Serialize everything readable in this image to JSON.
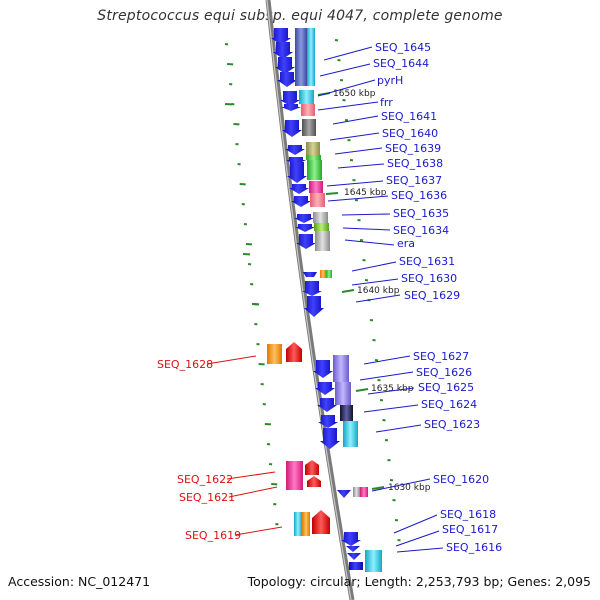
{
  "title": "Streptococcus equi subsp. equi 4047, complete genome",
  "footer": {
    "accession": "Accession: NC_012471",
    "summary": "Topology: circular; Length: 2,253,793 bp; Genes: 2,095"
  },
  "colors": {
    "forward_gene": "#1414e0",
    "label_forward": "#1a1acc",
    "label_reverse": "#dd1111",
    "backbone": "#7a7a7a",
    "tick": "#2a8a2a"
  },
  "scale_marks": [
    "1650 kbp",
    "1645 kbp",
    "1640 kbp",
    "1635 kbp",
    "1630 kbp"
  ],
  "gene_labels_right": [
    "SEQ_1645",
    "SEQ_1644",
    "pyrH",
    "frr",
    "SEQ_1641",
    "SEQ_1640",
    "SEQ_1639",
    "SEQ_1638",
    "SEQ_1637",
    "SEQ_1636",
    "SEQ_1635",
    "SEQ_1634",
    "era",
    "SEQ_1631",
    "SEQ_1630",
    "SEQ_1629",
    "SEQ_1627",
    "SEQ_1626",
    "SEQ_1625",
    "SEQ_1624",
    "SEQ_1623",
    "SEQ_1620",
    "SEQ_1618",
    "SEQ_1617",
    "SEQ_1616"
  ],
  "gene_labels_left": [
    "SEQ_1628",
    "SEQ_1622",
    "SEQ_1621",
    "SEQ_1619"
  ]
}
